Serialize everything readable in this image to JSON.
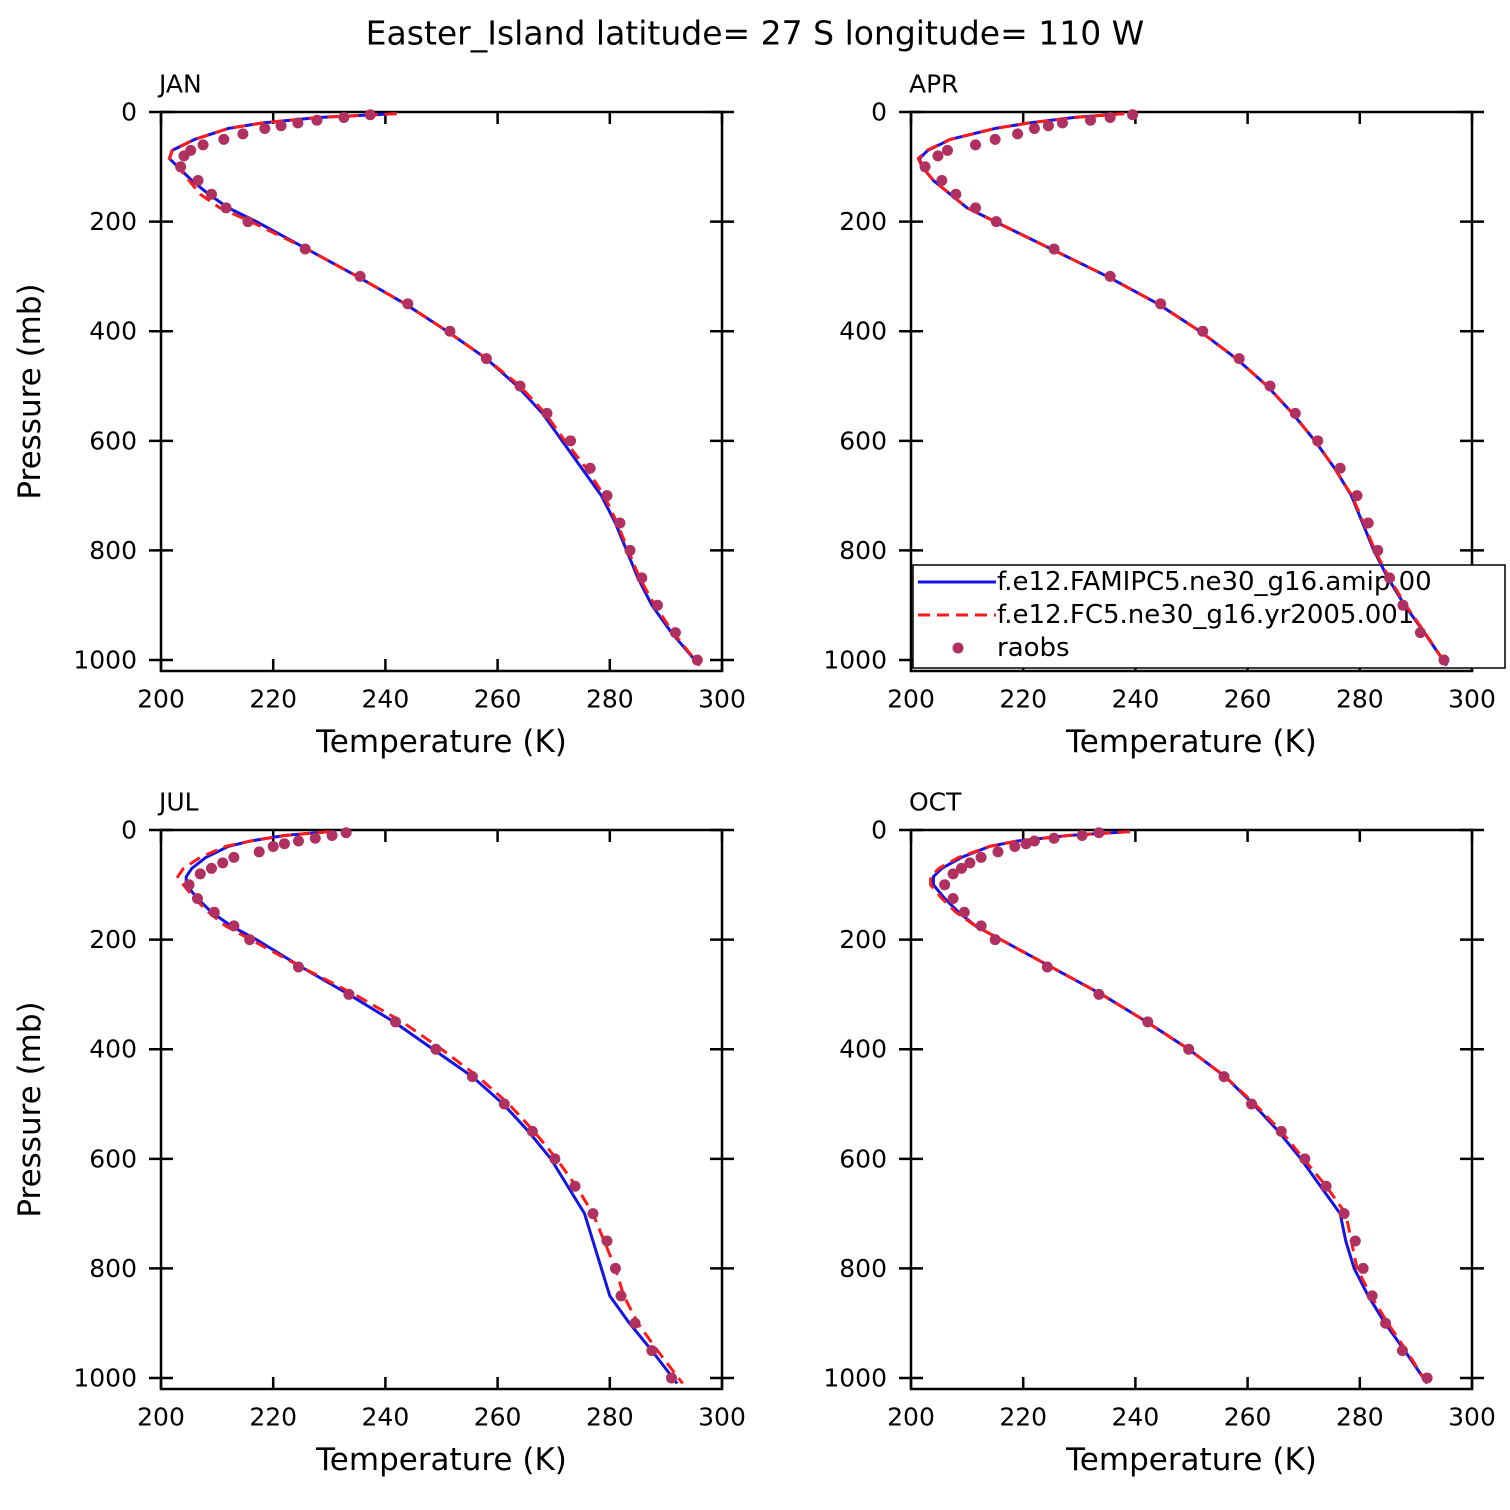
{
  "title": "Easter_Island  latitude= 27 S longitude= 110 W",
  "chart_data": [
    {
      "type": "line",
      "title": "JAN",
      "xlabel": "Temperature (K)",
      "ylabel": "Pressure (mb)",
      "xlim": [
        200,
        300
      ],
      "ylim": [
        1020,
        0
      ],
      "xticks": [
        200,
        220,
        240,
        260,
        280,
        300
      ],
      "yticks": [
        0,
        200,
        400,
        600,
        800,
        1000
      ],
      "series": [
        {
          "color": "#1414e6",
          "style": "solid",
          "x": [
            242,
            228,
            218,
            212,
            206,
            202,
            201.5,
            203,
            205.5,
            208.5,
            212,
            217,
            226,
            235,
            243.5,
            251,
            258,
            263.5,
            268,
            271.5,
            275,
            278.5,
            281,
            283,
            285,
            287.5,
            291,
            296
          ],
          "values": [
            3,
            10,
            20,
            30,
            50,
            70,
            85,
            100,
            125,
            150,
            175,
            200,
            250,
            300,
            350,
            400,
            450,
            500,
            550,
            600,
            650,
            700,
            750,
            800,
            850,
            900,
            950,
            1010
          ]
        },
        {
          "color": "#ff1a1a",
          "style": "dashed",
          "x": [
            242,
            228,
            218,
            212,
            206,
            202,
            201.5,
            203,
            205,
            207,
            210.5,
            216,
            226,
            235,
            243.5,
            251,
            258,
            264,
            268.5,
            272,
            275.8,
            279,
            281.3,
            283.3,
            285.3,
            288,
            291.3,
            296
          ],
          "values": [
            3,
            10,
            20,
            30,
            50,
            70,
            85,
            100,
            125,
            150,
            175,
            200,
            250,
            300,
            350,
            400,
            450,
            500,
            550,
            600,
            650,
            700,
            750,
            800,
            850,
            900,
            950,
            1010
          ]
        },
        {
          "color": "#b03060",
          "style": "markers",
          "x": [
            237.3,
            232.6,
            227.8,
            224.4,
            221.4,
            218.5,
            214.6,
            211.2,
            207.5,
            205.3,
            204.1,
            203.5,
            206.6,
            209,
            211.6,
            215.5,
            225.7,
            235.5,
            244,
            251.5,
            258,
            264,
            268.8,
            273,
            276.5,
            279.5,
            281.8,
            283.6,
            285.7,
            288.5,
            291.7,
            295.6
          ],
          "values": [
            5,
            10,
            15,
            20,
            25,
            30,
            40,
            50,
            60,
            70,
            80,
            100,
            125,
            150,
            175,
            200,
            250,
            300,
            350,
            400,
            450,
            500,
            550,
            600,
            650,
            700,
            750,
            800,
            850,
            900,
            950,
            1000
          ]
        }
      ]
    },
    {
      "type": "line",
      "title": "APR",
      "xlabel": "Temperature (K)",
      "legend": "lower right",
      "xlim": [
        200,
        300
      ],
      "ylim": [
        1020,
        0
      ],
      "xticks": [
        200,
        220,
        240,
        260,
        280,
        300
      ],
      "yticks": [
        0,
        200,
        400,
        600,
        800,
        1000
      ],
      "series": [
        {
          "name": "f.e12.FAMIPC5.ne30_g16.amip.00",
          "color": "#1414e6",
          "style": "solid",
          "x": [
            238,
            229,
            221,
            215,
            207,
            203,
            201.5,
            202,
            204,
            207,
            210,
            215,
            225,
            235,
            244,
            251.5,
            258,
            263.5,
            268,
            272,
            275.5,
            278.5,
            280.5,
            282.5,
            285,
            288,
            291.5,
            295.5
          ],
          "values": [
            3,
            10,
            20,
            30,
            50,
            70,
            85,
            100,
            125,
            150,
            175,
            200,
            250,
            300,
            350,
            400,
            450,
            500,
            550,
            600,
            650,
            700,
            750,
            800,
            850,
            900,
            950,
            1010
          ]
        },
        {
          "name": "f.e12.FC5.ne30_g16.yr2005.001",
          "color": "#ff1a1a",
          "style": "dashed",
          "x": [
            238,
            229,
            221,
            215,
            207,
            202.8,
            201.3,
            202,
            204,
            207,
            210,
            215,
            225,
            235,
            244,
            251.5,
            258,
            263.5,
            268,
            272,
            275.5,
            278.6,
            280.7,
            282.7,
            285.2,
            288.2,
            291.6,
            295.5
          ],
          "values": [
            3,
            10,
            20,
            30,
            50,
            70,
            85,
            100,
            125,
            150,
            175,
            200,
            250,
            300,
            350,
            400,
            450,
            500,
            550,
            600,
            650,
            700,
            750,
            800,
            850,
            900,
            950,
            1010
          ]
        },
        {
          "name": "raobs",
          "color": "#b03060",
          "style": "markers",
          "x": [
            239.5,
            235.5,
            232,
            227,
            224.5,
            222,
            219,
            215,
            211.5,
            206.5,
            204.8,
            202.5,
            205.5,
            208,
            211.5,
            215.2,
            225.5,
            235.5,
            244.5,
            252,
            258.5,
            264,
            268.5,
            272.5,
            276.5,
            279.5,
            281.5,
            283.2,
            285.3,
            287.7,
            290.8,
            295
          ],
          "values": [
            5,
            10,
            15,
            20,
            25,
            30,
            40,
            50,
            60,
            70,
            80,
            100,
            125,
            150,
            175,
            200,
            250,
            300,
            350,
            400,
            450,
            500,
            550,
            600,
            650,
            700,
            750,
            800,
            850,
            900,
            950,
            1000
          ]
        }
      ]
    },
    {
      "type": "line",
      "title": "JUL",
      "xlabel": "Temperature (K)",
      "ylabel": "Pressure (mb)",
      "xlim": [
        200,
        300
      ],
      "ylim": [
        1020,
        0
      ],
      "xticks": [
        200,
        220,
        240,
        260,
        280,
        300
      ],
      "yticks": [
        0,
        200,
        400,
        600,
        800,
        1000
      ],
      "series": [
        {
          "color": "#1414e6",
          "style": "solid",
          "x": [
            230,
            222,
            216,
            212,
            208,
            205.5,
            204.5,
            204.5,
            206.5,
            209,
            212.5,
            217,
            225,
            233.5,
            241.5,
            248.5,
            255.5,
            261,
            265.5,
            269.5,
            272.5,
            275.5,
            277,
            278.5,
            280,
            283.5,
            287.5,
            292
          ],
          "values": [
            3,
            10,
            20,
            30,
            50,
            70,
            85,
            100,
            125,
            150,
            175,
            200,
            250,
            300,
            350,
            400,
            450,
            500,
            550,
            600,
            650,
            700,
            750,
            800,
            850,
            900,
            950,
            1010
          ]
        },
        {
          "color": "#ff1a1a",
          "style": "dashed",
          "x": [
            230,
            222,
            216,
            211.5,
            207,
            204,
            203,
            204,
            206,
            208.5,
            211.5,
            216,
            225,
            234.5,
            243,
            250,
            256.5,
            262,
            266.5,
            270.5,
            274,
            277,
            279,
            281,
            282.5,
            285,
            288.5,
            293
          ],
          "values": [
            3,
            10,
            20,
            30,
            50,
            70,
            85,
            100,
            125,
            150,
            175,
            200,
            250,
            300,
            350,
            400,
            450,
            500,
            550,
            600,
            650,
            700,
            750,
            800,
            850,
            900,
            950,
            1010
          ]
        },
        {
          "color": "#b03060",
          "style": "markers",
          "x": [
            233,
            230.5,
            227.5,
            224.5,
            222,
            220,
            217.5,
            213,
            211,
            209,
            207,
            205,
            206.5,
            209.5,
            213,
            215.8,
            224.5,
            233.5,
            241.8,
            249,
            255.5,
            261.2,
            266.2,
            270.2,
            273.8,
            277,
            279.5,
            281,
            282,
            284.5,
            287.5,
            291
          ],
          "values": [
            5,
            10,
            15,
            20,
            25,
            30,
            40,
            50,
            60,
            70,
            80,
            100,
            125,
            150,
            175,
            200,
            250,
            300,
            350,
            400,
            450,
            500,
            550,
            600,
            650,
            700,
            750,
            800,
            850,
            900,
            950,
            1000
          ]
        }
      ]
    },
    {
      "type": "line",
      "title": "OCT",
      "xlabel": "Temperature (K)",
      "xlim": [
        200,
        300
      ],
      "ylim": [
        1020,
        0
      ],
      "xticks": [
        200,
        220,
        240,
        260,
        280,
        300
      ],
      "yticks": [
        0,
        200,
        400,
        600,
        800,
        1000
      ],
      "series": [
        {
          "color": "#1414e6",
          "style": "solid",
          "x": [
            239,
            228,
            219,
            214,
            209,
            205.5,
            204,
            204,
            206,
            208.5,
            211.5,
            216,
            225,
            234,
            242,
            249.5,
            256,
            261,
            265.5,
            269.5,
            273,
            276.5,
            277.5,
            279,
            281.5,
            284.5,
            288,
            292
          ],
          "values": [
            3,
            10,
            20,
            30,
            50,
            70,
            85,
            100,
            125,
            150,
            175,
            200,
            250,
            300,
            350,
            400,
            450,
            500,
            550,
            600,
            650,
            700,
            750,
            800,
            850,
            900,
            950,
            1010
          ]
        },
        {
          "color": "#ff1a1a",
          "style": "dashed",
          "x": [
            239,
            228,
            219,
            214,
            208.5,
            205,
            203.5,
            203.5,
            205.5,
            208,
            211.5,
            216,
            225,
            234,
            242,
            249.5,
            256,
            261.3,
            266,
            270,
            274,
            277.5,
            278.5,
            279.5,
            282,
            285,
            288.3,
            292
          ],
          "values": [
            3,
            10,
            20,
            30,
            50,
            70,
            85,
            100,
            125,
            150,
            175,
            200,
            250,
            300,
            350,
            400,
            450,
            500,
            550,
            600,
            650,
            700,
            750,
            800,
            850,
            900,
            950,
            1010
          ]
        },
        {
          "color": "#b03060",
          "style": "markers",
          "x": [
            233.5,
            230.5,
            225.5,
            222,
            220.5,
            218.5,
            215.5,
            212.5,
            210.5,
            209,
            207.5,
            206,
            207.5,
            209.5,
            212.5,
            215,
            224.3,
            233.5,
            242.2,
            249.5,
            255.8,
            260.7,
            266,
            270.2,
            274,
            277.2,
            279.2,
            280.6,
            282.2,
            284.6,
            287.6,
            292
          ],
          "values": [
            5,
            10,
            15,
            20,
            25,
            30,
            40,
            50,
            60,
            70,
            80,
            100,
            125,
            150,
            175,
            200,
            250,
            300,
            350,
            400,
            450,
            500,
            550,
            600,
            650,
            700,
            750,
            800,
            850,
            900,
            950,
            1000
          ]
        }
      ]
    }
  ]
}
